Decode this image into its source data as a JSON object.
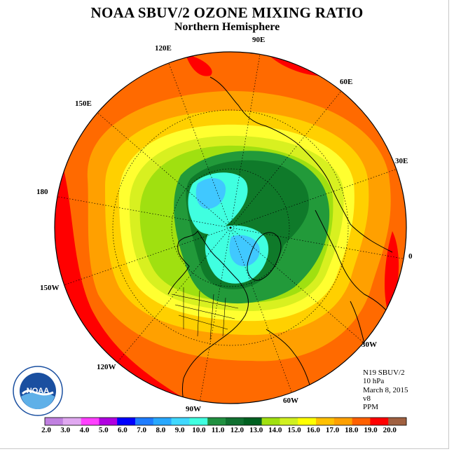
{
  "title": "NOAA SBUV/2 OZONE MIXING RATIO",
  "subtitle": "Northern Hemisphere",
  "longitude_labels": {
    "lon_90e": "90E",
    "lon_60e": "60E",
    "lon_30e": "30E",
    "lon_0": "0",
    "lon_30w": "30W",
    "lon_60w": "60W",
    "lon_90w": "90W",
    "lon_120w": "120W",
    "lon_150w": "150W",
    "lon_180": "180",
    "lon_150e": "150E",
    "lon_120e": "120E"
  },
  "info": {
    "satellite": "N19 SBUV/2",
    "level": "10 hPa",
    "date": "March 8, 2015",
    "version": "v8",
    "units": "PPM"
  },
  "colorbar": {
    "labels": [
      "2.0",
      "3.0",
      "4.0",
      "5.0",
      "6.0",
      "7.0",
      "8.0",
      "9.0",
      "10.0",
      "11.0",
      "12.0",
      "13.0",
      "14.0",
      "15.0",
      "16.0",
      "17.0",
      "18.0",
      "19.0",
      "20.0"
    ],
    "colors": [
      "#c080e0",
      "#e0a8f0",
      "#ff40ff",
      "#b000e0",
      "#0000ff",
      "#1e7cff",
      "#28a8ff",
      "#40d8ff",
      "#40ffe0",
      "#209040",
      "#107030",
      "#006020",
      "#a0e010",
      "#d0f020",
      "#ffff00",
      "#ffc000",
      "#ffa000",
      "#ff6000",
      "#ff0000",
      "#a06040"
    ]
  },
  "field_colors": {
    "ppm_18": "#ff0000",
    "ppm_17": "#ff6a00",
    "ppm_16": "#ffa000",
    "ppm_15": "#ffd000",
    "ppm_14": "#ffff30",
    "ppm_13": "#d8f020",
    "ppm_12": "#a0e010",
    "ppm_11": "#229a3a",
    "ppm_10": "#0f7a2a",
    "ppm_9": "#40ffe0",
    "ppm_8": "#40c8ff"
  },
  "logo": {
    "text": "NOAA",
    "ring_text": "NATIONAL OCEANIC AND ATMOSPHERIC ADMINISTRATION · U.S. DEPARTMENT OF COMMERCE"
  }
}
